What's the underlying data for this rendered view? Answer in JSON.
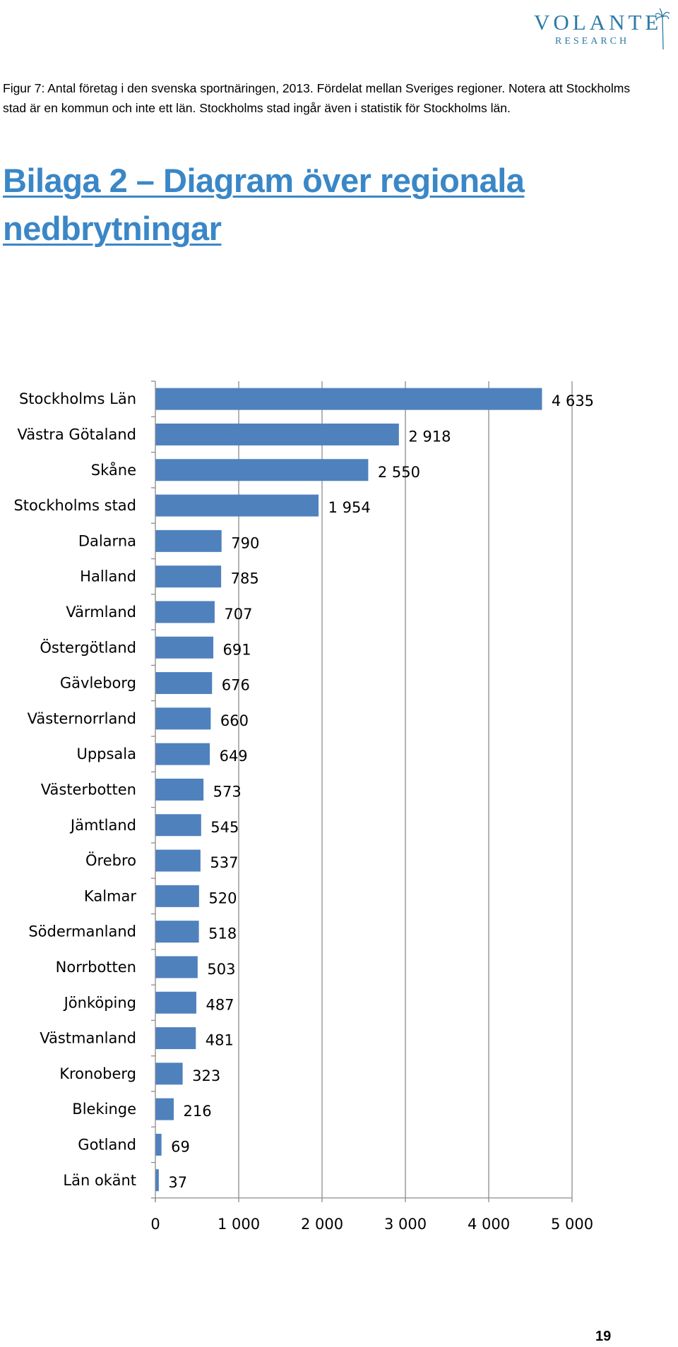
{
  "logo": {
    "name": "VOLANTE",
    "sub": "RESEARCH"
  },
  "heading": {
    "line1": "Bilaga 2 – Diagram över regionala",
    "line2": "nedbrytningar"
  },
  "caption": "Figur 7: Antal företag i den svenska sportnäringen, 2013. Fördelat mellan Sveriges regioner. Notera att Stockholms stad är en kommun och inte ett län. Stockholms stad ingår även i statistik för Stockholms län.",
  "chart_data": {
    "type": "bar",
    "orientation": "horizontal",
    "categories": [
      "Stockholms Län",
      "Västra Götaland",
      "Skåne",
      "Stockholms stad",
      "Dalarna",
      "Halland",
      "Värmland",
      "Östergötland",
      "Gävleborg",
      "Västernorrland",
      "Uppsala",
      "Västerbotten",
      "Jämtland",
      "Örebro",
      "Kalmar",
      "Södermanland",
      "Norrbotten",
      "Jönköping",
      "Västmanland",
      "Kronoberg",
      "Blekinge",
      "Gotland",
      "Län okänt"
    ],
    "values": [
      4635,
      2918,
      2550,
      1954,
      790,
      785,
      707,
      691,
      676,
      660,
      649,
      573,
      545,
      537,
      520,
      518,
      503,
      487,
      481,
      323,
      216,
      69,
      37
    ],
    "data_labels": [
      "4 635",
      "2 918",
      "2 550",
      "1 954",
      "790",
      "785",
      "707",
      "691",
      "676",
      "660",
      "649",
      "573",
      "545",
      "537",
      "520",
      "518",
      "503",
      "487",
      "481",
      "323",
      "216",
      "69",
      "37"
    ],
    "xlim": [
      0,
      5000
    ],
    "x_ticks": [
      0,
      1000,
      2000,
      3000,
      4000,
      5000
    ],
    "x_tick_labels": [
      "0",
      "1 000",
      "2 000",
      "3 000",
      "4 000",
      "5 000"
    ],
    "grid": true,
    "bar_color": "#4f81bd"
  },
  "page_number": "19"
}
